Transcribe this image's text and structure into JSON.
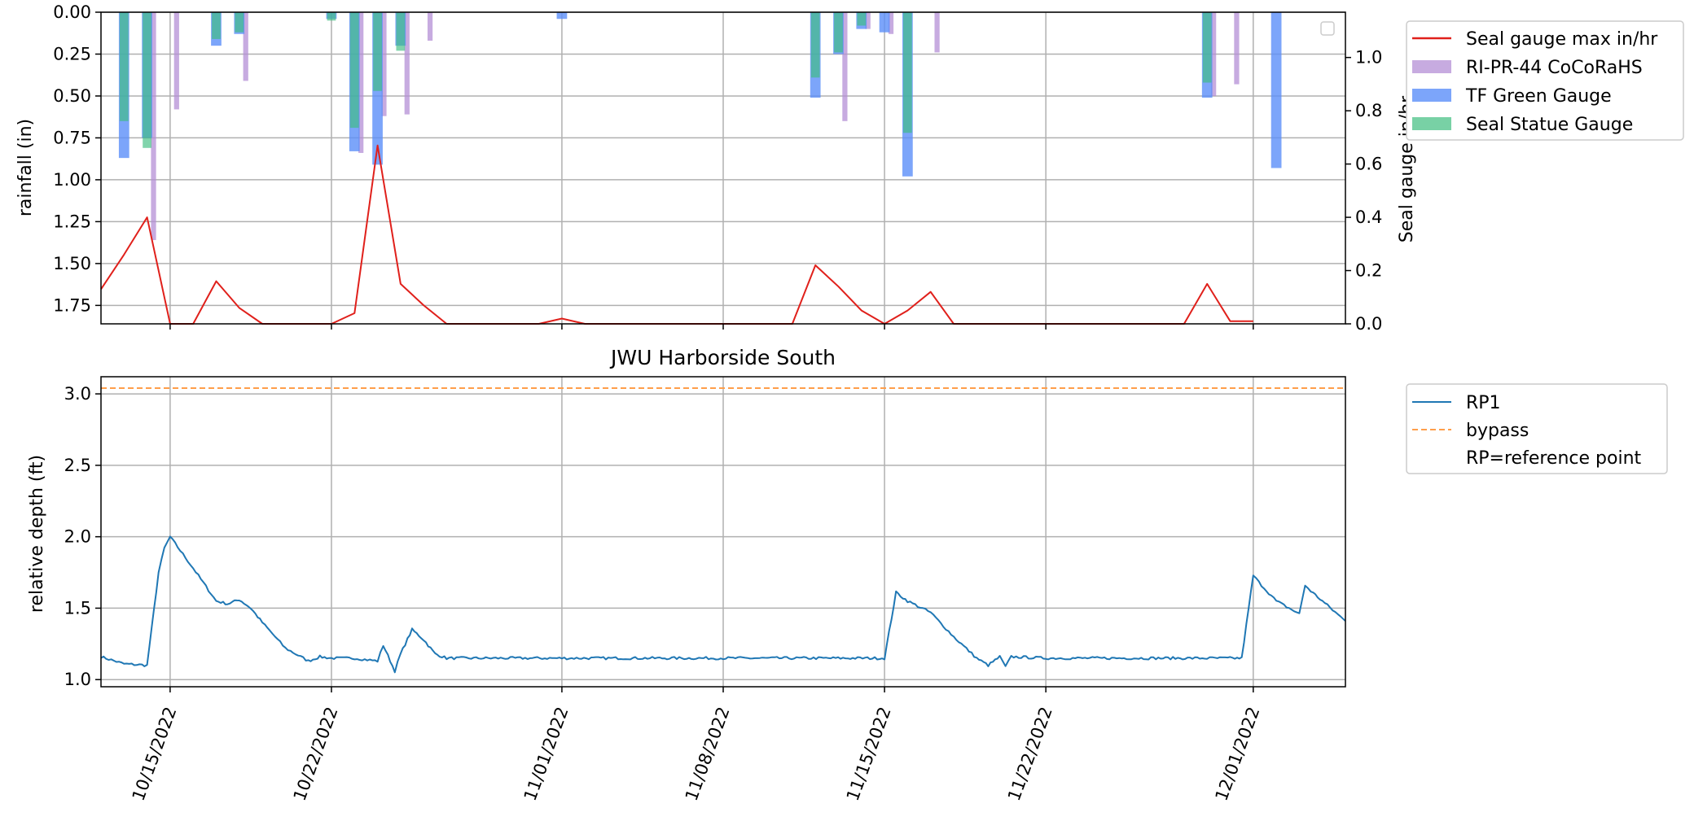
{
  "chart_data": [
    {
      "type": "bar",
      "panel": "rainfall",
      "title": "",
      "xlabel": "",
      "ylabel": "rainfall (in)",
      "ylabel_right": "Seal gauge in/hr",
      "ylim": [
        0,
        1.86
      ],
      "y_inverted": true,
      "ylim_right": [
        0,
        1.17
      ],
      "xlim": [
        "2022-10-12",
        "2022-12-05"
      ],
      "grid": true,
      "legend_position": "outside-right-top",
      "legend_entries": [
        "Seal gauge max in/hr",
        "RI-PR-44 CoCoRaHS",
        "TF Green Gauge",
        "Seal Statue Gauge"
      ],
      "yticks": [
        "0.00",
        "0.25",
        "0.50",
        "0.75",
        "1.00",
        "1.25",
        "1.50",
        "1.75"
      ],
      "yticks_right": [
        "0.0",
        "0.2",
        "0.4",
        "0.6",
        "0.8",
        "1.0"
      ],
      "series": [
        {
          "name": "RI-PR-44 CoCoRaHS",
          "kind": "bar",
          "color": "#b48fd6",
          "x": [
            "2022-10-14",
            "2022-10-15",
            "2022-10-18",
            "2022-10-23",
            "2022-10-24",
            "2022-10-25",
            "2022-10-26",
            "2022-11-13",
            "2022-11-14",
            "2022-11-15",
            "2022-11-17",
            "2022-11-29",
            "2022-11-30"
          ],
          "y": [
            1.36,
            0.58,
            0.41,
            0.84,
            0.62,
            0.61,
            0.17,
            0.65,
            0.1,
            0.13,
            0.24,
            0.5,
            0.43
          ]
        },
        {
          "name": "TF Green Gauge",
          "kind": "bar",
          "color": "#5b8ff9",
          "x": [
            "2022-10-13",
            "2022-10-14",
            "2022-10-17",
            "2022-10-18",
            "2022-10-22",
            "2022-10-23",
            "2022-10-24",
            "2022-10-25",
            "2022-11-01",
            "2022-11-12",
            "2022-11-13",
            "2022-11-14",
            "2022-11-15",
            "2022-11-16",
            "2022-11-29",
            "2022-12-02"
          ],
          "y": [
            0.87,
            0.75,
            0.2,
            0.13,
            0.04,
            0.83,
            0.91,
            0.2,
            0.04,
            0.51,
            0.25,
            0.1,
            0.12,
            0.98,
            0.51,
            0.93
          ]
        },
        {
          "name": "Seal Statue Gauge",
          "kind": "bar",
          "color": "#3ebd7f",
          "x": [
            "2022-10-13",
            "2022-10-14",
            "2022-10-17",
            "2022-10-18",
            "2022-10-22",
            "2022-10-23",
            "2022-10-24",
            "2022-10-25",
            "2022-11-12",
            "2022-11-13",
            "2022-11-14",
            "2022-11-16",
            "2022-11-29"
          ],
          "y": [
            0.65,
            0.81,
            0.16,
            0.12,
            0.05,
            0.69,
            0.47,
            0.23,
            0.39,
            0.24,
            0.08,
            0.72,
            0.42
          ]
        },
        {
          "name": "Seal gauge max in/hr",
          "kind": "line",
          "axis": "right",
          "color": "#e0201b",
          "x": [
            "2022-10-12",
            "2022-10-13",
            "2022-10-14",
            "2022-10-15",
            "2022-10-16",
            "2022-10-17",
            "2022-10-18",
            "2022-10-19",
            "2022-10-20",
            "2022-10-21",
            "2022-10-22",
            "2022-10-23",
            "2022-10-24",
            "2022-10-25",
            "2022-10-26",
            "2022-10-27",
            "2022-10-28",
            "2022-10-29",
            "2022-10-30",
            "2022-10-31",
            "2022-11-01",
            "2022-11-02",
            "2022-11-03",
            "2022-11-04",
            "2022-11-05",
            "2022-11-06",
            "2022-11-07",
            "2022-11-08",
            "2022-11-09",
            "2022-11-10",
            "2022-11-11",
            "2022-11-12",
            "2022-11-13",
            "2022-11-14",
            "2022-11-15",
            "2022-11-16",
            "2022-11-17",
            "2022-11-18",
            "2022-11-19",
            "2022-11-20",
            "2022-11-21",
            "2022-11-22",
            "2022-11-23",
            "2022-11-24",
            "2022-11-25",
            "2022-11-26",
            "2022-11-27",
            "2022-11-28",
            "2022-11-29",
            "2022-11-30",
            "2022-12-01"
          ],
          "y": [
            0.13,
            0.26,
            0.4,
            0.0,
            0.0,
            0.16,
            0.06,
            0.0,
            0.0,
            0.0,
            0.0,
            0.04,
            0.67,
            0.15,
            0.07,
            0.0,
            0.0,
            0.0,
            0.0,
            0.0,
            0.02,
            0.0,
            0.0,
            0.0,
            0.0,
            0.0,
            0.0,
            0.0,
            0.0,
            0.0,
            0.0,
            0.22,
            0.14,
            0.05,
            0.0,
            0.05,
            0.12,
            0.0,
            0.0,
            0.0,
            0.0,
            0.0,
            0.0,
            0.0,
            0.0,
            0.0,
            0.0,
            0.0,
            0.15,
            0.01,
            0.01
          ]
        }
      ]
    },
    {
      "type": "line",
      "panel": "depth",
      "title": "JWU Harborside South",
      "xlabel": "",
      "ylabel": "relative depth (ft)",
      "ylim": [
        0.95,
        3.12
      ],
      "xlim": [
        "2022-10-12",
        "2022-12-05"
      ],
      "grid": true,
      "legend_position": "outside-right-top",
      "legend_entries": [
        "RP1",
        "bypass",
        "RP=reference point"
      ],
      "yticks": [
        "1.0",
        "1.5",
        "2.0",
        "2.5",
        "3.0"
      ],
      "xticks": [
        "10/15/2022",
        "10/22/2022",
        "11/01/2022",
        "11/08/2022",
        "11/15/2022",
        "11/22/2022",
        "12/01/2022"
      ],
      "series": [
        {
          "name": "RP1",
          "color": "#1f77b4",
          "x": [
            "2022-10-12",
            "2022-10-13",
            "2022-10-14",
            "2022-10-14T12:00",
            "2022-10-14T18:00",
            "2022-10-15",
            "2022-10-16",
            "2022-10-17",
            "2022-10-17T12:00",
            "2022-10-18",
            "2022-10-18T12:00",
            "2022-10-19",
            "2022-10-20",
            "2022-10-21",
            "2022-10-21T12:00",
            "2022-10-22",
            "2022-10-23",
            "2022-10-24",
            "2022-10-24T06:00",
            "2022-10-24T18:00",
            "2022-10-25",
            "2022-10-25T12:00",
            "2022-10-26",
            "2022-10-26T12:00",
            "2022-10-27",
            "2022-11-01",
            "2022-11-08",
            "2022-11-15",
            "2022-11-15T12:00",
            "2022-11-16",
            "2022-11-17",
            "2022-11-18",
            "2022-11-19",
            "2022-11-19T12:00",
            "2022-11-20",
            "2022-11-20T06:00",
            "2022-11-20T12:00",
            "2022-11-22",
            "2022-11-29",
            "2022-11-30",
            "2022-11-30T12:00",
            "2022-12-01",
            "2022-12-01T06:00",
            "2022-12-02",
            "2022-12-03",
            "2022-12-03T06:00",
            "2022-12-03T12:00",
            "2022-12-04",
            "2022-12-05"
          ],
          "y": [
            1.16,
            1.11,
            1.1,
            1.75,
            1.92,
            2.0,
            1.78,
            1.55,
            1.53,
            1.56,
            1.5,
            1.4,
            1.22,
            1.13,
            1.16,
            1.15,
            1.15,
            1.13,
            1.24,
            1.06,
            1.18,
            1.35,
            1.28,
            1.18,
            1.15,
            1.15,
            1.15,
            1.15,
            1.61,
            1.55,
            1.47,
            1.3,
            1.15,
            1.1,
            1.16,
            1.09,
            1.16,
            1.15,
            1.15,
            1.15,
            1.15,
            1.73,
            1.68,
            1.55,
            1.46,
            1.66,
            1.62,
            1.55,
            1.41
          ]
        },
        {
          "name": "bypass",
          "style": "dashed",
          "color": "#ff9e4a",
          "x": [
            "2022-10-12",
            "2022-12-05"
          ],
          "y": [
            3.04,
            3.04
          ]
        }
      ]
    }
  ]
}
